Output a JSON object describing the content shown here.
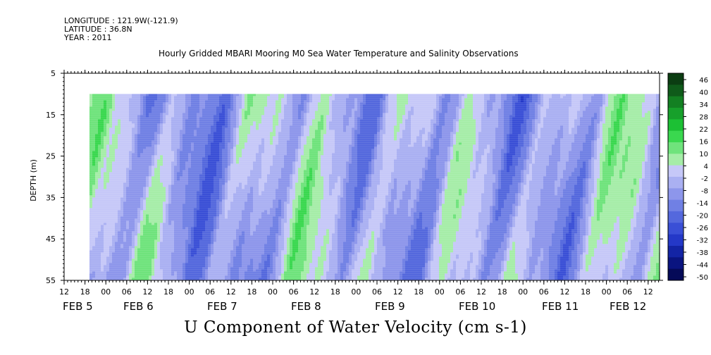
{
  "header": {
    "longitude": "LONGITUDE : 121.9W(-121.9)",
    "latitude": "LATITUDE : 36.8N",
    "year": "YEAR : 2011"
  },
  "chart_data": {
    "type": "heatmap",
    "title": "Hourly Gridded MBARI Mooring M0 Sea Water Temperature and Salinity Observations",
    "xlabel": "U Component of Water Velocity (cm s-1)",
    "ylabel": "DEPTH (m)",
    "ylim": [
      55,
      5
    ],
    "y_ticks": [
      5,
      15,
      25,
      35,
      45,
      55
    ],
    "x_hour_ticks": [
      "12",
      "18",
      "00",
      "06",
      "12",
      "18",
      "00",
      "06",
      "12",
      "18",
      "00",
      "06",
      "12",
      "18",
      "00",
      "06",
      "12",
      "18",
      "00",
      "06",
      "12",
      "18",
      "00",
      "06",
      "12",
      "18",
      "00",
      "06",
      "12",
      "18",
      "00",
      "06",
      "12"
    ],
    "x_date_labels": [
      "FEB 5",
      "FEB 6",
      "FEB 7",
      "FEB 8",
      "FEB 9",
      "FEB 10",
      "FEB 11",
      "FEB 12"
    ],
    "data_depth_range": [
      10,
      55
    ],
    "colorbar": {
      "labels": [
        "46",
        "40",
        "34",
        "28",
        "22",
        "16",
        "10",
        "4",
        "-2",
        "-8",
        "-14",
        "-20",
        "-26",
        "-32",
        "-38",
        "-44",
        "-50"
      ],
      "range": [
        -50,
        49
      ],
      "colors": [
        "#0b3d12",
        "#0f5b1a",
        "#138022",
        "#17a02b",
        "#1cc034",
        "#3ad84f",
        "#6fe37c",
        "#a6eda8",
        "#c6c8f8",
        "#aab0f2",
        "#8d96eb",
        "#7080e4",
        "#5468dd",
        "#3a4fd6",
        "#2438c8",
        "#1324a5",
        "#0a1480",
        "#050a58"
      ]
    },
    "u_velocity_pattern": {
      "description_units": "cm s-1",
      "value_range": [
        -30,
        25
      ]
    }
  }
}
